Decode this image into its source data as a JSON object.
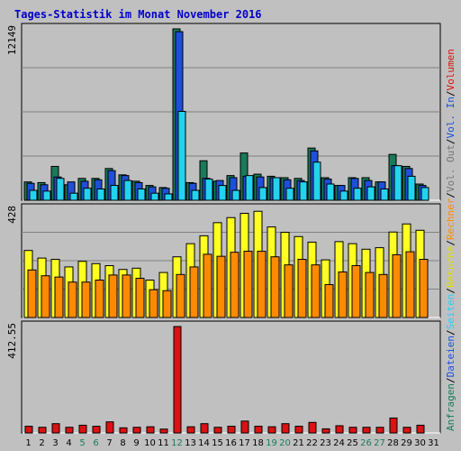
{
  "title": "Tages-Statistik im Monat November 2016",
  "colors": {
    "background": "#c0c0c0",
    "title": "#0000cc",
    "hits": "#1a7a5a",
    "files": "#1e4fd8",
    "pages": "#22d3f0",
    "visits": "#ffff22",
    "sites": "#ff8a00",
    "volume": "#dd1111",
    "axisText": "#000000",
    "weekendText": "#1a7a5a"
  },
  "legend": {
    "top": [
      {
        "label": "Anfragen",
        "color": "#1a7a5a"
      },
      {
        "label": "/",
        "color": "#000000"
      },
      {
        "label": "Dateien",
        "color": "#1e4fd8"
      },
      {
        "label": "/",
        "color": "#000000"
      },
      {
        "label": "Seiten",
        "color": "#22d3f0"
      },
      {
        "label": "/",
        "color": "#000000"
      },
      {
        "label": "Besuche",
        "color": "#dddd00"
      },
      {
        "label": "/",
        "color": "#000000"
      },
      {
        "label": "Rechner",
        "color": "#ff8a00"
      },
      {
        "label": "/",
        "color": "#000000"
      },
      {
        "label": "Vol. Out",
        "color": "#777777"
      },
      {
        "label": "/",
        "color": "#000000"
      },
      {
        "label": "Vol. In",
        "color": "#1e4fd8"
      },
      {
        "label": "/",
        "color": "#000000"
      },
      {
        "label": "Volumen",
        "color": "#dd1111"
      }
    ]
  },
  "chart_data": [
    {
      "type": "bar",
      "panel": "hits-files-pages",
      "ymax_label": "12149",
      "ylim": [
        0,
        12149
      ],
      "categories": [
        "1",
        "2",
        "3",
        "4",
        "5",
        "6",
        "7",
        "8",
        "9",
        "10",
        "11",
        "12",
        "13",
        "14",
        "15",
        "16",
        "17",
        "18",
        "19",
        "20",
        "21",
        "22",
        "23",
        "24",
        "25",
        "26",
        "27",
        "28",
        "29",
        "30",
        "31"
      ],
      "weekend": [
        "5",
        "6",
        "12",
        "19",
        "20",
        "26",
        "27"
      ],
      "series": [
        {
          "name": "Anfragen",
          "values": [
            1300,
            1250,
            2400,
            1100,
            1550,
            1550,
            2250,
            1800,
            1350,
            1050,
            900,
            12149,
            1250,
            2800,
            1350,
            1750,
            3350,
            1850,
            1700,
            1600,
            1550,
            3700,
            1600,
            1050,
            1600,
            1600,
            1300,
            3250,
            2400,
            1150,
            0
          ]
        },
        {
          "name": "Dateien",
          "values": [
            1200,
            1100,
            1650,
            1300,
            1350,
            1450,
            2100,
            1750,
            1250,
            950,
            850,
            11950,
            1200,
            1550,
            1400,
            1600,
            1700,
            1650,
            1600,
            1450,
            1400,
            3500,
            1500,
            1050,
            1550,
            1400,
            1300,
            2450,
            2250,
            1050,
            0
          ]
        },
        {
          "name": "Seiten",
          "values": [
            700,
            650,
            1550,
            500,
            850,
            800,
            1050,
            1400,
            800,
            500,
            450,
            6300,
            700,
            1500,
            1050,
            700,
            1750,
            900,
            1600,
            850,
            1300,
            2700,
            1150,
            650,
            850,
            950,
            800,
            2450,
            1700,
            900,
            0
          ]
        }
      ]
    },
    {
      "type": "bar",
      "panel": "visits-sites",
      "ymax_label": "428",
      "ylim": [
        0,
        428
      ],
      "categories": [
        "1",
        "2",
        "3",
        "4",
        "5",
        "6",
        "7",
        "8",
        "9",
        "10",
        "11",
        "12",
        "13",
        "14",
        "15",
        "16",
        "17",
        "18",
        "19",
        "20",
        "21",
        "22",
        "23",
        "24",
        "25",
        "26",
        "27",
        "28",
        "29",
        "30",
        "31"
      ],
      "series": [
        {
          "name": "Besuche",
          "values": [
            265,
            235,
            230,
            200,
            222,
            213,
            205,
            190,
            195,
            148,
            178,
            240,
            292,
            323,
            375,
            395,
            412,
            420,
            358,
            337,
            320,
            298,
            228,
            300,
            292,
            270,
            276,
            338,
            370,
            345,
            0
          ]
        },
        {
          "name": "Rechner",
          "values": [
            188,
            165,
            160,
            140,
            140,
            148,
            168,
            168,
            155,
            110,
            106,
            170,
            200,
            250,
            242,
            258,
            262,
            262,
            240,
            208,
            230,
            208,
            130,
            180,
            205,
            178,
            170,
            248,
            260,
            230,
            0
          ]
        }
      ]
    },
    {
      "type": "bar",
      "panel": "volume",
      "ymax_label": "412.55",
      "ylim": [
        0,
        412.55
      ],
      "categories": [
        "1",
        "2",
        "3",
        "4",
        "5",
        "6",
        "7",
        "8",
        "9",
        "10",
        "11",
        "12",
        "13",
        "14",
        "15",
        "16",
        "17",
        "18",
        "19",
        "20",
        "21",
        "22",
        "23",
        "24",
        "25",
        "26",
        "27",
        "28",
        "29",
        "30",
        "31"
      ],
      "series": [
        {
          "name": "Volumen",
          "values": [
            26,
            22,
            36,
            22,
            30,
            26,
            43,
            20,
            22,
            24,
            15,
            412.55,
            24,
            36,
            22,
            26,
            46,
            26,
            24,
            36,
            26,
            41,
            16,
            28,
            22,
            22,
            22,
            58,
            22,
            30,
            0
          ]
        }
      ]
    }
  ]
}
